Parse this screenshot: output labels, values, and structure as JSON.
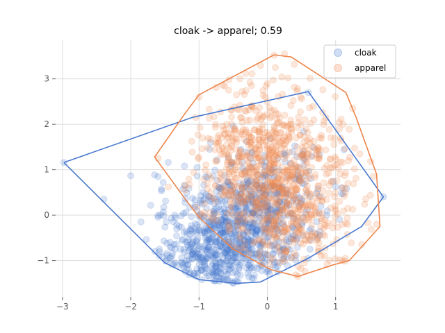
{
  "chart_data": {
    "type": "scatter",
    "title": "cloak -> apparel; 0.59",
    "xlabel": "",
    "ylabel": "",
    "xlim": [
      -3.1,
      1.95
    ],
    "ylim": [
      -1.8,
      3.85
    ],
    "xticks": [
      -3,
      -2,
      -1,
      0,
      1
    ],
    "yticks": [
      -1,
      0,
      1,
      2,
      3
    ],
    "grid": true,
    "legend": {
      "placement": "top-right",
      "entries": [
        "cloak",
        "apparel"
      ]
    },
    "series": [
      {
        "name": "cloak",
        "color": "#4878cf",
        "point_alpha": 0.2,
        "n_points": 1000,
        "distribution": {
          "center": [
            -0.5,
            -0.45
          ],
          "spread": [
            0.6,
            0.85
          ],
          "tilt": 0.45
        },
        "sample_points": [
          [
            -2.98,
            1.16
          ],
          [
            -2.0,
            0.87
          ],
          [
            -1.6,
            0.85
          ],
          [
            -1.55,
            0.57
          ],
          [
            -1.85,
            -0.15
          ],
          [
            -1.35,
            -1.05
          ],
          [
            -0.8,
            -1.2
          ],
          [
            -0.5,
            -1.5
          ],
          [
            0.6,
            2.7
          ],
          [
            1.7,
            0.4
          ]
        ],
        "hull": [
          [
            -2.98,
            1.16
          ],
          [
            -1.1,
            2.15
          ],
          [
            0.6,
            2.72
          ],
          [
            1.7,
            0.4
          ],
          [
            1.38,
            -0.25
          ],
          [
            0.6,
            -0.95
          ],
          [
            -0.1,
            -1.47
          ],
          [
            -0.45,
            -1.5
          ],
          [
            -1.0,
            -1.42
          ],
          [
            -1.5,
            -1.05
          ],
          [
            -2.98,
            1.16
          ]
        ]
      },
      {
        "name": "apparel",
        "color": "#ee854a",
        "point_alpha": 0.2,
        "n_points": 1000,
        "distribution": {
          "center": [
            0.1,
            0.75
          ],
          "spread": [
            0.6,
            1.05
          ],
          "tilt": -0.15
        },
        "sample_points": [
          [
            0.1,
            3.52
          ],
          [
            0.25,
            3.55
          ],
          [
            -1.6,
            1.25
          ],
          [
            -1.45,
            0.62
          ],
          [
            1.6,
            -0.2
          ],
          [
            1.55,
            0.85
          ],
          [
            1.25,
            2.35
          ],
          [
            0.45,
            -1.35
          ],
          [
            1.1,
            -1.0
          ],
          [
            -1.0,
            2.6
          ]
        ],
        "hull": [
          [
            0.1,
            3.53
          ],
          [
            0.35,
            3.48
          ],
          [
            1.15,
            2.7
          ],
          [
            1.3,
            2.15
          ],
          [
            1.6,
            0.9
          ],
          [
            1.65,
            -0.25
          ],
          [
            1.2,
            -1.0
          ],
          [
            0.95,
            -1.1
          ],
          [
            0.45,
            -1.35
          ],
          [
            0.05,
            -1.2
          ],
          [
            -0.5,
            -0.75
          ],
          [
            -1.0,
            -0.05
          ],
          [
            -1.2,
            0.35
          ],
          [
            -1.65,
            1.28
          ],
          [
            -1.2,
            2.25
          ],
          [
            -1.0,
            2.65
          ],
          [
            0.1,
            3.53
          ]
        ]
      }
    ]
  }
}
